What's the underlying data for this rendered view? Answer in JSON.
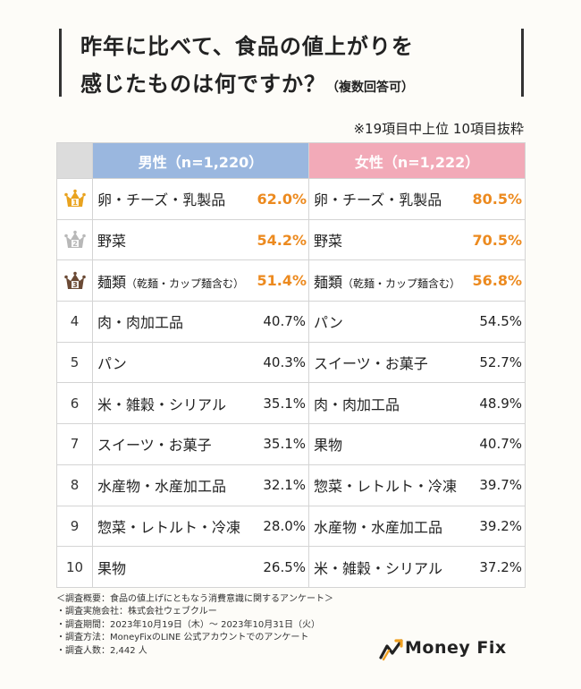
{
  "title": {
    "line1": "昨年に比べて、食品の値上がりを",
    "line2": "感じたものは何ですか？",
    "sub": "（複数回答可）"
  },
  "note": "※19項目中上位 10項目抜粋",
  "chart_data": {
    "type": "table",
    "columns": [
      {
        "header": "男性（n=1,220）",
        "color": "#9ab7df"
      },
      {
        "header": "女性（n=1,222）",
        "color": "#f2aab8"
      }
    ],
    "rows": [
      {
        "rank": "1",
        "male_item": "卵・チーズ・乳製品",
        "male_value": "62.0%",
        "female_item": "卵・チーズ・乳製品",
        "female_value": "80.5%"
      },
      {
        "rank": "2",
        "male_item": "野菜",
        "male_value": "54.2%",
        "female_item": "野菜",
        "female_value": "70.5%"
      },
      {
        "rank": "3",
        "male_item": "麺類",
        "male_item_note": "（乾麺・カップ麺含む）",
        "male_value": "51.4%",
        "female_item": "麺類",
        "female_item_note": "（乾麺・カップ麺含む）",
        "female_value": "56.8%"
      },
      {
        "rank": "4",
        "male_item": "肉・肉加工品",
        "male_value": "40.7%",
        "female_item": "パン",
        "female_value": "54.5%"
      },
      {
        "rank": "5",
        "male_item": "パン",
        "male_value": "40.3%",
        "female_item": "スイーツ・お菓子",
        "female_value": "52.7%"
      },
      {
        "rank": "6",
        "male_item": "米・雑穀・シリアル",
        "male_value": "35.1%",
        "female_item": "肉・肉加工品",
        "female_value": "48.9%"
      },
      {
        "rank": "7",
        "male_item": "スイーツ・お菓子",
        "male_value": "35.1%",
        "female_item": "果物",
        "female_value": "40.7%"
      },
      {
        "rank": "8",
        "male_item": "水産物・水産加工品",
        "male_value": "32.1%",
        "female_item": "惣菜・レトルト・冷凍",
        "female_value": "39.7%"
      },
      {
        "rank": "9",
        "male_item": "惣菜・レトルト・冷凍",
        "male_value": "28.0%",
        "female_item": "水産物・水産加工品",
        "female_value": "39.2%"
      },
      {
        "rank": "10",
        "male_item": "果物",
        "male_value": "26.5%",
        "female_item": "米・雑穀・シリアル",
        "female_value": "37.2%"
      }
    ],
    "crown_colors": {
      "1": "#e9a31f",
      "2": "#b8b8b8",
      "3": "#6b4a35"
    },
    "top_value_color": "#ec8a1f"
  },
  "footer": [
    "＜調査概要：食品の値上げにともなう消費意識に関するアンケート＞",
    "・調査実施会社：株式会社ウェブクルー",
    "・調査期間：2023年10月19日（木）～ 2023年10月31日（火）",
    "・調査方法：MoneyFixのLINE 公式アカウントでのアンケート",
    "・調査人数：2,442 人"
  ],
  "logo": {
    "text": "Money Fix",
    "icon": "moneyfix-chart-logo-icon",
    "accent": "#f0a020"
  }
}
